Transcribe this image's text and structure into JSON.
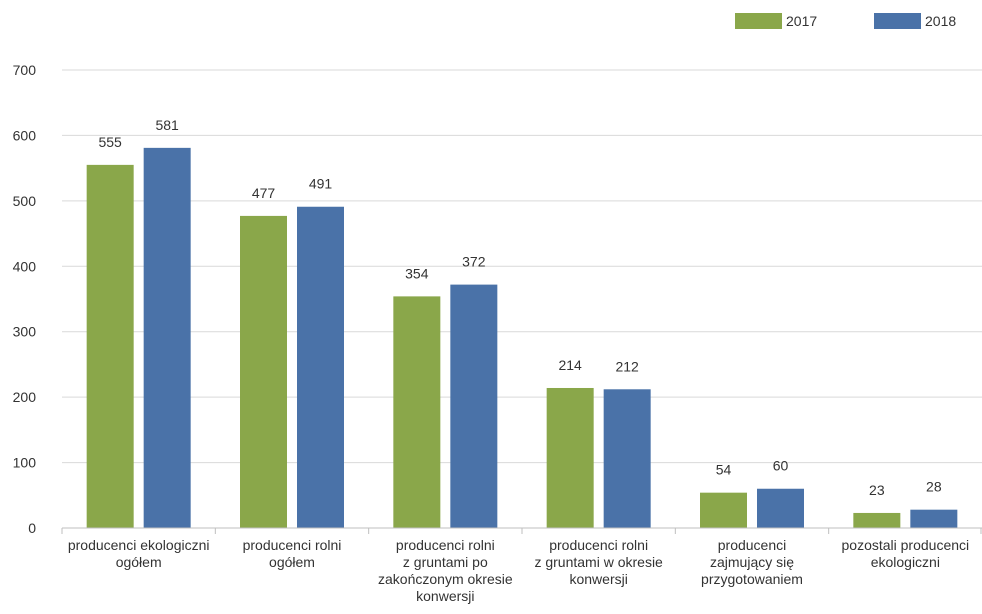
{
  "chart_data": {
    "type": "bar",
    "categories": [
      [
        "producenci ekologiczni",
        "ogółem"
      ],
      [
        "producenci rolni",
        "ogółem"
      ],
      [
        "producenci rolni",
        "z gruntami po",
        "zakończonym okresie",
        "konwersji"
      ],
      [
        "producenci rolni",
        "z gruntami w okresie",
        "konwersji"
      ],
      [
        "producenci",
        "zajmujący się",
        "przygotowaniem"
      ],
      [
        "pozostali producenci",
        "ekologiczni"
      ]
    ],
    "series": [
      {
        "name": "2017",
        "values": [
          555,
          477,
          354,
          214,
          54,
          23
        ],
        "color": "#8aa74a"
      },
      {
        "name": "2018",
        "values": [
          581,
          491,
          372,
          212,
          60,
          28
        ],
        "color": "#4a72a8"
      }
    ],
    "ylim": [
      0,
      700
    ],
    "yticks": [
      0,
      100,
      200,
      300,
      400,
      500,
      600,
      700
    ],
    "grid": true,
    "legend": "top-right",
    "title": "",
    "xlabel": "",
    "ylabel": ""
  }
}
